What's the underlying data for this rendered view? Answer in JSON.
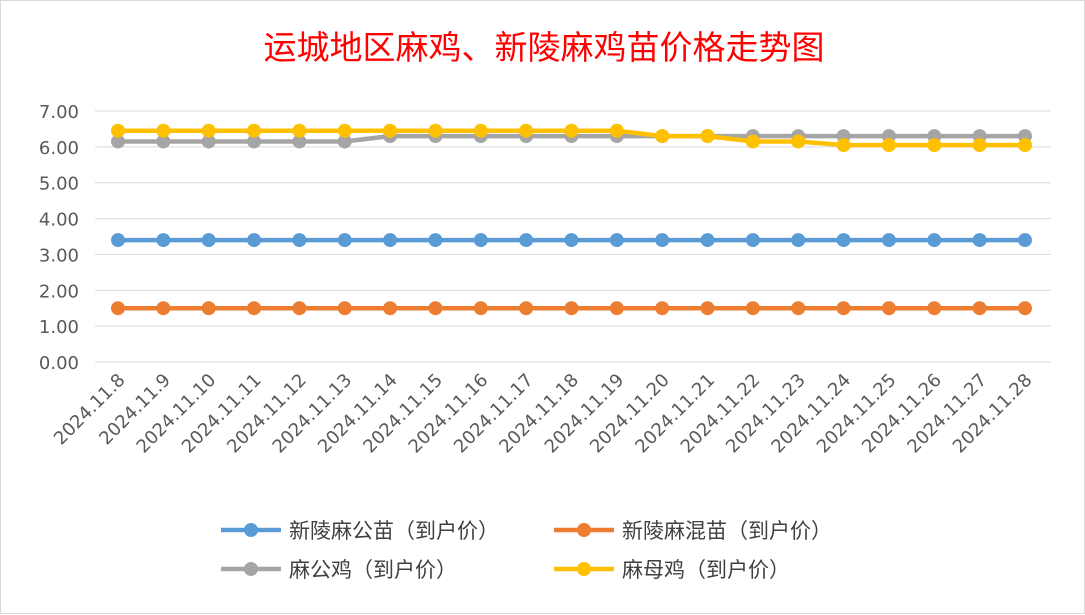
{
  "chart_data": {
    "type": "line",
    "title": "运城地区麻鸡、新陵麻鸡苗价格走势图",
    "xlabel": "",
    "ylabel": "",
    "ylim": [
      0,
      7
    ],
    "y_ticks": [
      "0.00",
      "1.00",
      "2.00",
      "3.00",
      "4.00",
      "5.00",
      "6.00",
      "7.00"
    ],
    "grid": true,
    "legend_position": "bottom",
    "categories": [
      "2024.11.8",
      "2024.11.9",
      "2024.11.10",
      "2024.11.11",
      "2024.11.12",
      "2024.11.13",
      "2024.11.14",
      "2024.11.15",
      "2024.11.16",
      "2024.11.17",
      "2024.11.18",
      "2024.11.19",
      "2024.11.20",
      "2024.11.21",
      "2024.11.22",
      "2024.11.23",
      "2024.11.24",
      "2024.11.25",
      "2024.11.26",
      "2024.11.27",
      "2024.11.28"
    ],
    "series": [
      {
        "name": "新陵麻公苗（到户价）",
        "color": "#5b9bd5",
        "values": [
          3.4,
          3.4,
          3.4,
          3.4,
          3.4,
          3.4,
          3.4,
          3.4,
          3.4,
          3.4,
          3.4,
          3.4,
          3.4,
          3.4,
          3.4,
          3.4,
          3.4,
          3.4,
          3.4,
          3.4,
          3.4
        ]
      },
      {
        "name": "新陵麻混苗（到户价）",
        "color": "#ed7d31",
        "values": [
          1.5,
          1.5,
          1.5,
          1.5,
          1.5,
          1.5,
          1.5,
          1.5,
          1.5,
          1.5,
          1.5,
          1.5,
          1.5,
          1.5,
          1.5,
          1.5,
          1.5,
          1.5,
          1.5,
          1.5,
          1.5
        ]
      },
      {
        "name": "麻公鸡（到户价）",
        "color": "#a5a5a5",
        "values": [
          6.15,
          6.15,
          6.15,
          6.15,
          6.15,
          6.15,
          6.3,
          6.3,
          6.3,
          6.3,
          6.3,
          6.3,
          6.3,
          6.3,
          6.3,
          6.3,
          6.3,
          6.3,
          6.3,
          6.3,
          6.3
        ]
      },
      {
        "name": "麻母鸡（到户价）",
        "color": "#ffc000",
        "values": [
          6.45,
          6.45,
          6.45,
          6.45,
          6.45,
          6.45,
          6.45,
          6.45,
          6.45,
          6.45,
          6.45,
          6.45,
          6.3,
          6.3,
          6.15,
          6.15,
          6.05,
          6.05,
          6.05,
          6.05,
          6.05
        ]
      }
    ]
  }
}
